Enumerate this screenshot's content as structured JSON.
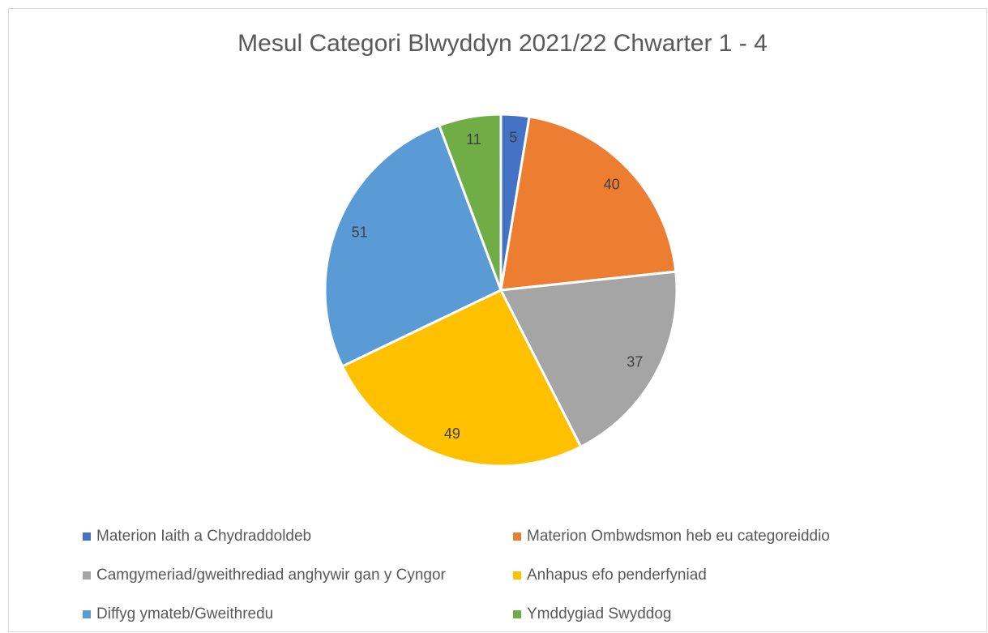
{
  "chart_data": {
    "type": "pie",
    "title": "Mesul Categori Blwyddyn 2021/22 Chwarter 1 - 4",
    "categories": [
      "Materion Iaith a Chydraddoldeb",
      "Materion Ombwdsmon heb eu categoreiddio",
      "Camgymeriad/gweithrediad anghywir gan y Cyngor",
      "Anhapus efo penderfyniad",
      "Diffyg ymateb/Gweithredu",
      "Ymddygiad Swyddog"
    ],
    "values": [
      5,
      40,
      37,
      49,
      51,
      11
    ],
    "colors": [
      "#4472c4",
      "#ed7d31",
      "#a5a5a5",
      "#ffc000",
      "#5b9bd5",
      "#70ad47"
    ],
    "legend": "bottom"
  }
}
